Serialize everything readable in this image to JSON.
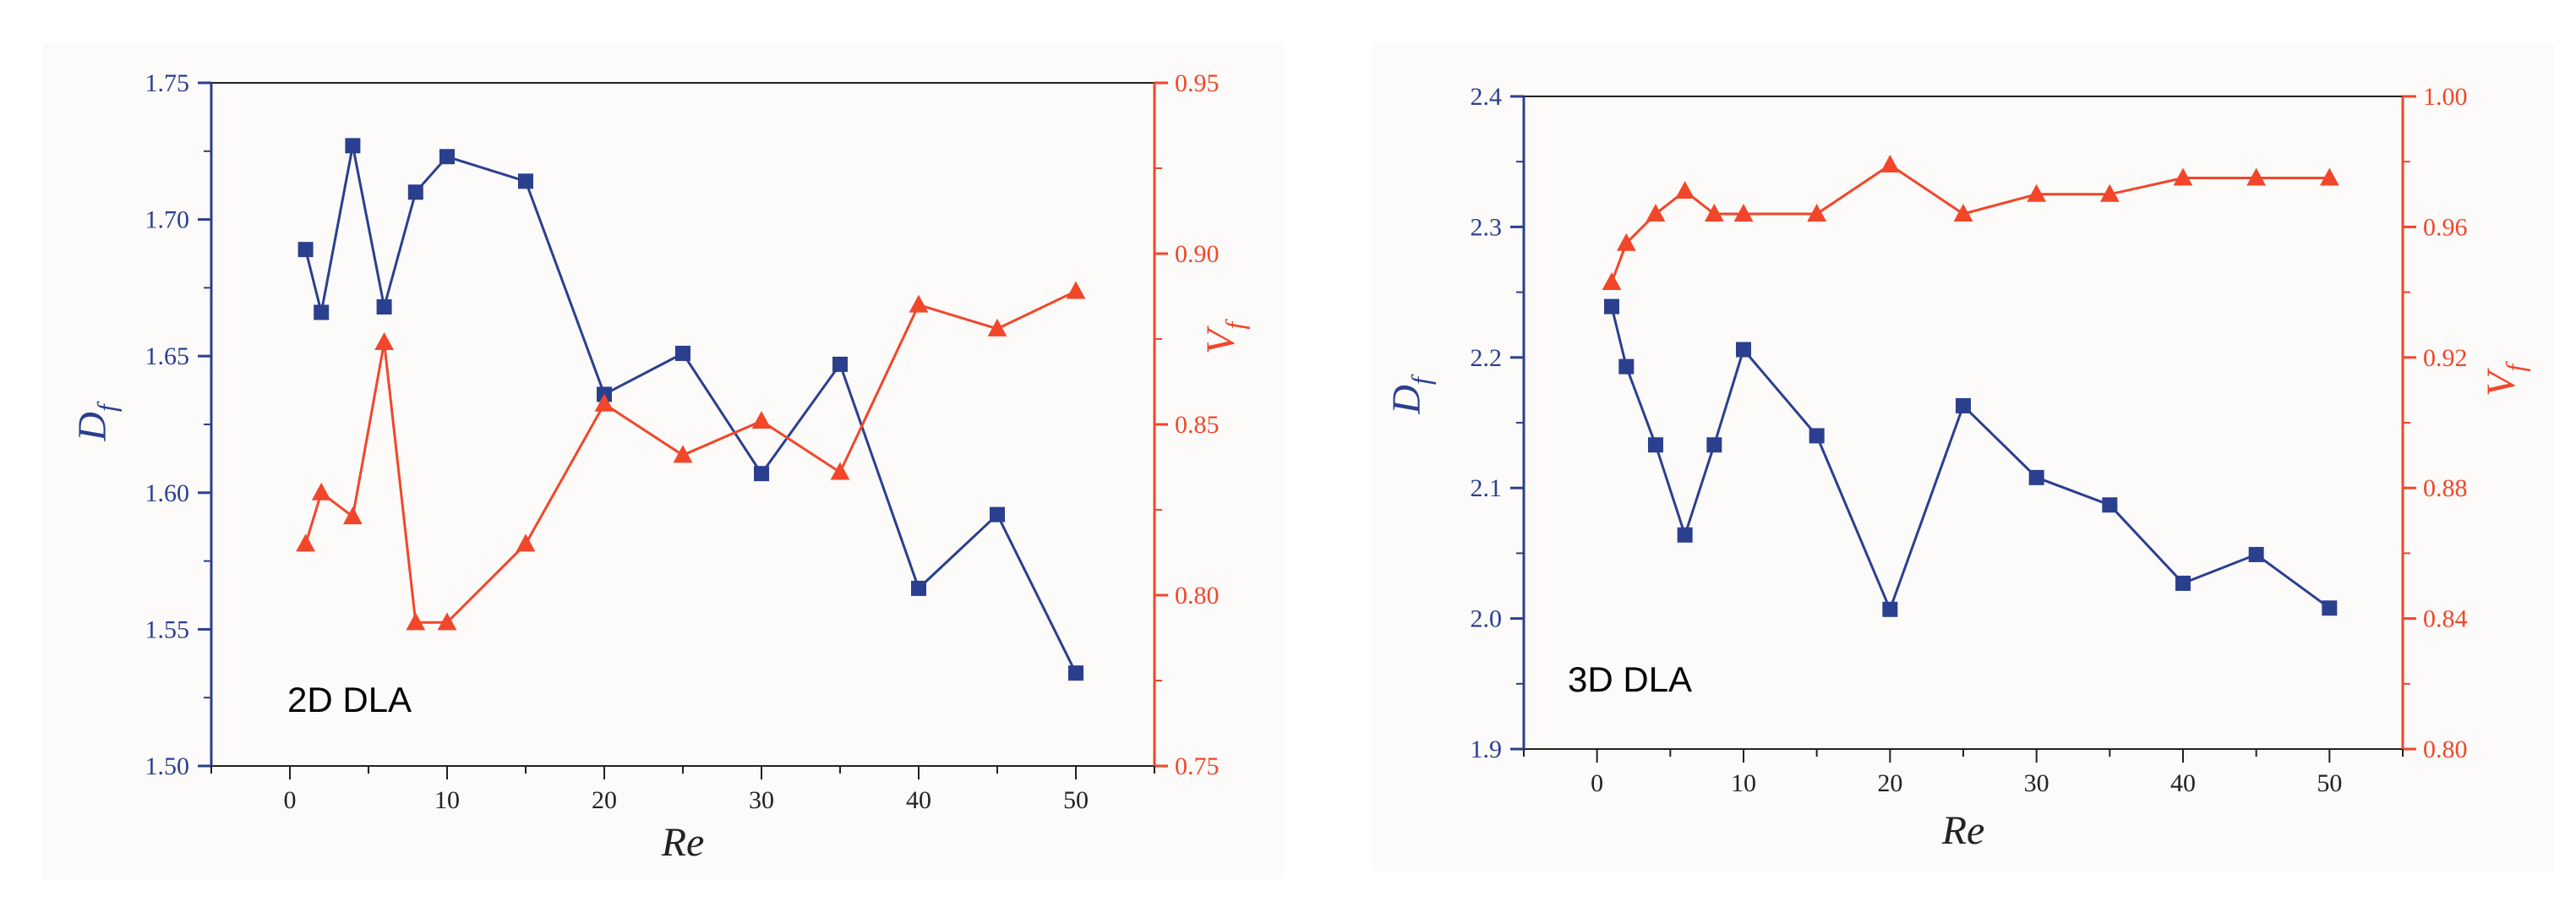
{
  "colors": {
    "df": "#2b3f8f",
    "vf": "#f2462a",
    "axis_black": "#222222"
  },
  "chart_data": [
    {
      "type": "line",
      "title": "2D DLA",
      "xlabel": "Re",
      "ylabel_left": "D",
      "ylabel_left_sub": "f",
      "ylabel_right": "V",
      "ylabel_right_sub": "f",
      "xlim": [
        -5,
        55
      ],
      "ylim_left": [
        1.5,
        1.75
      ],
      "ylim_right": [
        0.75,
        0.95
      ],
      "xticks": [
        0,
        10,
        20,
        30,
        40,
        50
      ],
      "yticks_left": [
        1.5,
        1.55,
        1.6,
        1.65,
        1.7,
        1.75
      ],
      "yticks_right": [
        0.75,
        0.8,
        0.85,
        0.9,
        0.95
      ],
      "xtick_labels": [
        "0",
        "10",
        "20",
        "30",
        "40",
        "50"
      ],
      "ytick_left_labels": [
        "1.50",
        "1.55",
        "1.60",
        "1.65",
        "1.70",
        "1.75"
      ],
      "ytick_right_labels": [
        "0.75",
        "0.80",
        "0.85",
        "0.90",
        "0.95"
      ],
      "series": [
        {
          "name": "Df",
          "axis": "left",
          "marker": "square",
          "x": [
            1,
            2,
            4,
            6,
            8,
            10,
            15,
            20,
            25,
            30,
            35,
            40,
            45,
            50
          ],
          "y": [
            1.689,
            1.666,
            1.727,
            1.668,
            1.71,
            1.723,
            1.714,
            1.636,
            1.651,
            1.607,
            1.647,
            1.565,
            1.592,
            1.534
          ]
        },
        {
          "name": "Vf",
          "axis": "right",
          "marker": "triangle",
          "x": [
            1,
            2,
            4,
            6,
            8,
            10,
            15,
            20,
            25,
            30,
            35,
            40,
            45,
            50
          ],
          "y": [
            0.815,
            0.83,
            0.823,
            0.874,
            0.792,
            0.792,
            0.815,
            0.856,
            0.841,
            0.851,
            0.836,
            0.885,
            0.878,
            0.889
          ]
        }
      ]
    },
    {
      "type": "line",
      "title": "3D DLA",
      "xlabel": "Re",
      "ylabel_left": "D",
      "ylabel_left_sub": "f",
      "ylabel_right": "V",
      "ylabel_right_sub": "f",
      "xlim": [
        -5,
        55
      ],
      "ylim_left": [
        1.9,
        2.4
      ],
      "ylim_right": [
        0.8,
        1.0
      ],
      "xticks": [
        0,
        10,
        20,
        30,
        40,
        50
      ],
      "yticks_left": [
        1.9,
        2.0,
        2.1,
        2.2,
        2.3,
        2.4
      ],
      "yticks_right": [
        0.8,
        0.84,
        0.88,
        0.92,
        0.96,
        1.0
      ],
      "xtick_labels": [
        "0",
        "10",
        "20",
        "30",
        "40",
        "50"
      ],
      "ytick_left_labels": [
        "1.9",
        "2.0",
        "2.1",
        "2.2",
        "2.3",
        "2.4"
      ],
      "ytick_right_labels": [
        "0.80",
        "0.84",
        "0.88",
        "0.92",
        "0.96",
        "1.00"
      ],
      "series": [
        {
          "name": "Df",
          "axis": "left",
          "marker": "square",
          "x": [
            1,
            2,
            4,
            6,
            8,
            10,
            15,
            20,
            25,
            30,
            35,
            40,
            45,
            50
          ],
          "y": [
            2.239,
            2.193,
            2.133,
            2.064,
            2.133,
            2.206,
            2.14,
            2.007,
            2.163,
            2.108,
            2.087,
            2.027,
            2.049,
            2.008
          ]
        },
        {
          "name": "Vf",
          "axis": "right",
          "marker": "triangle",
          "x": [
            1,
            2,
            4,
            6,
            8,
            10,
            15,
            20,
            25,
            30,
            35,
            40,
            45,
            50
          ],
          "y": [
            0.943,
            0.955,
            0.964,
            0.971,
            0.964,
            0.964,
            0.964,
            0.979,
            0.964,
            0.97,
            0.97,
            0.975,
            0.975,
            0.975
          ]
        }
      ]
    }
  ]
}
